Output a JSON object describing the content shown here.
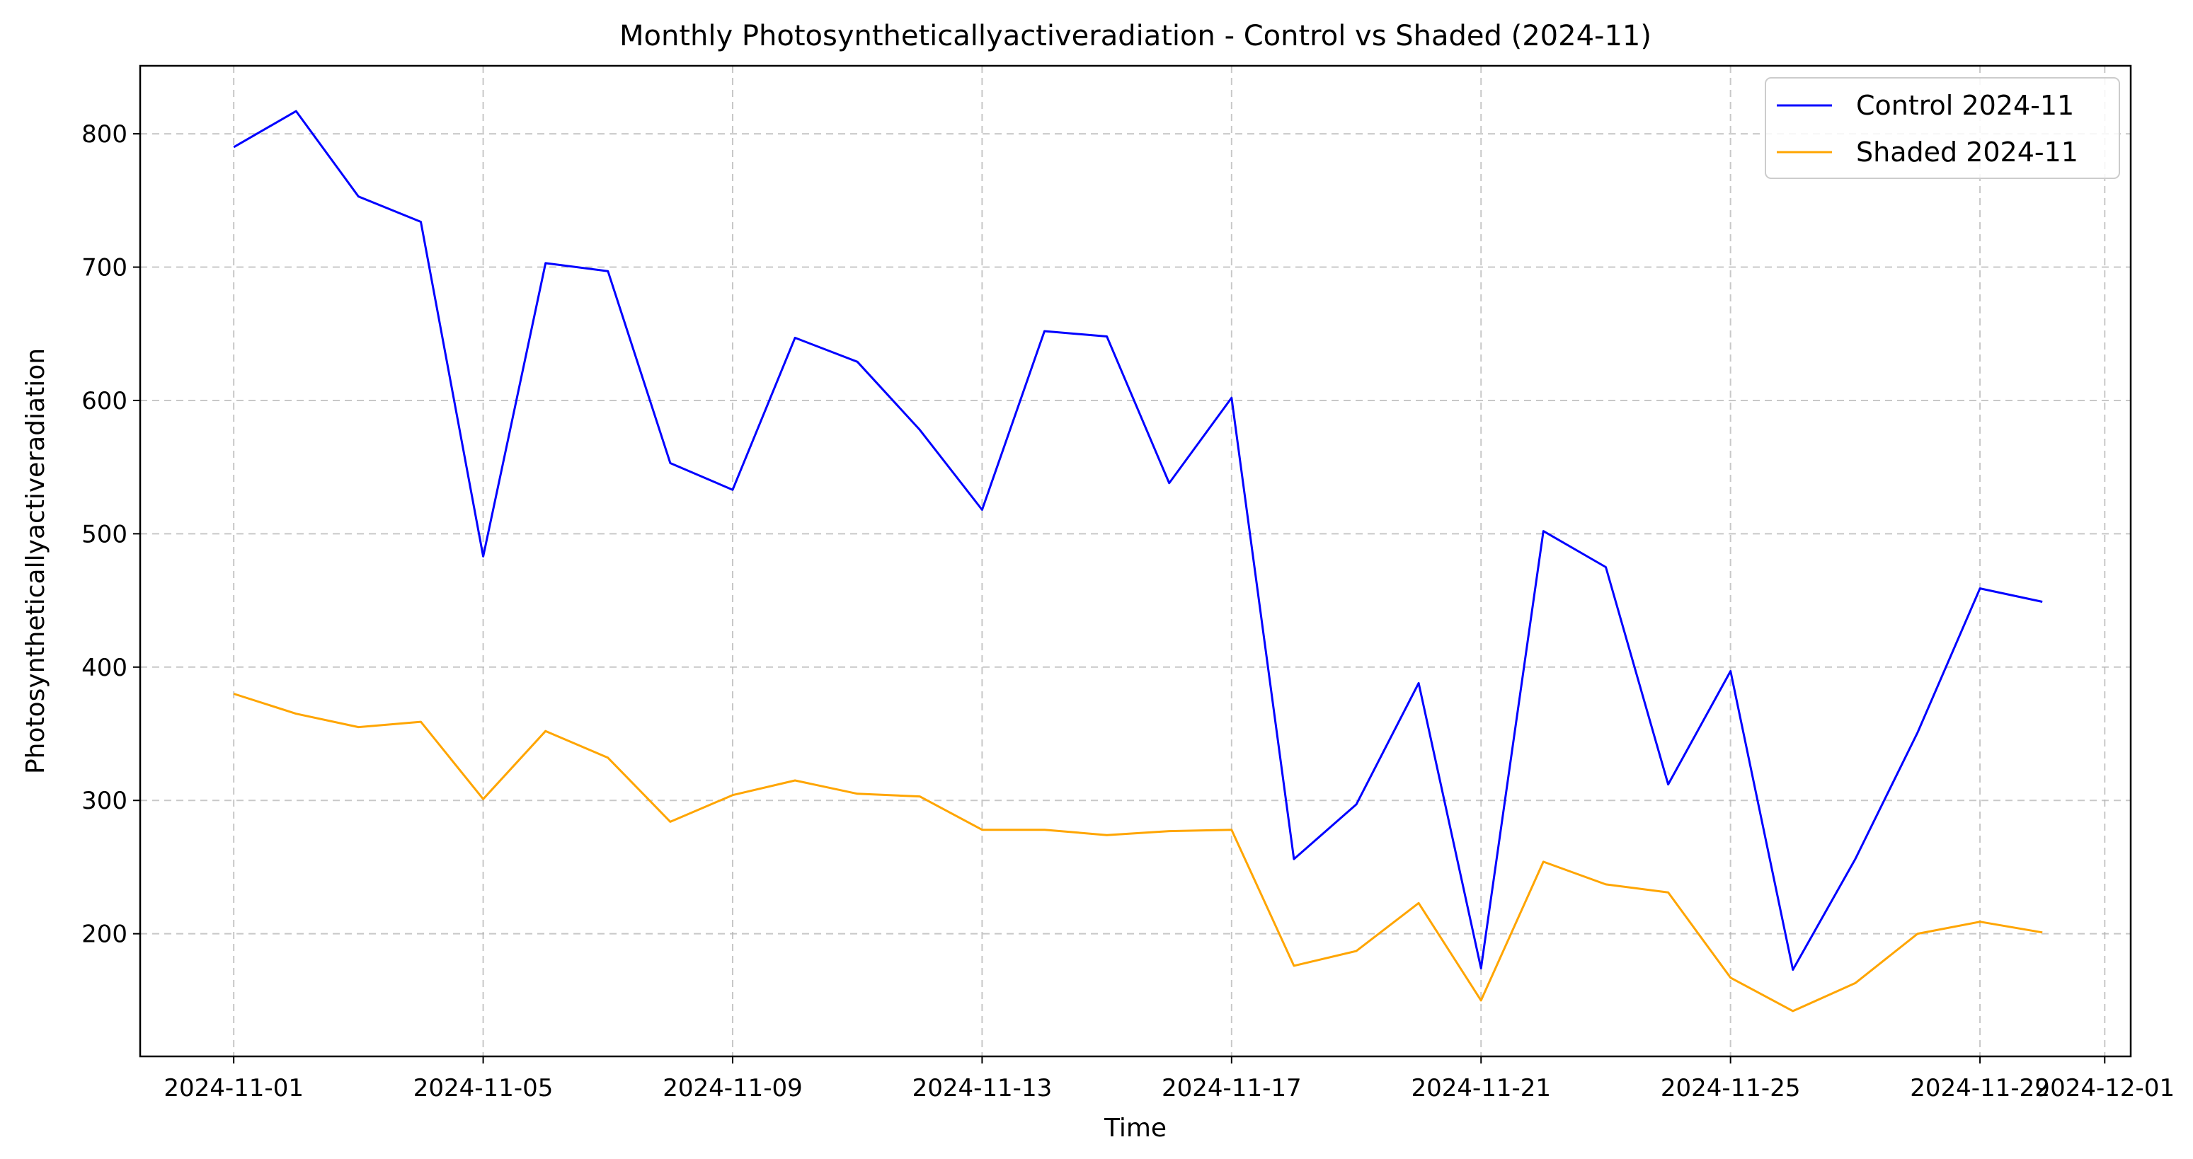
{
  "chart_data": {
    "type": "line",
    "title": "Monthly Photosyntheticallyactiveradiation - Control vs Shaded (2024-11)",
    "xlabel": "Time",
    "ylabel": "Photosyntheticallyactiveradiation",
    "x_dates": [
      "2024-11-01",
      "2024-11-02",
      "2024-11-03",
      "2024-11-04",
      "2024-11-05",
      "2024-11-06",
      "2024-11-07",
      "2024-11-08",
      "2024-11-09",
      "2024-11-10",
      "2024-11-11",
      "2024-11-12",
      "2024-11-13",
      "2024-11-14",
      "2024-11-15",
      "2024-11-16",
      "2024-11-17",
      "2024-11-18",
      "2024-11-19",
      "2024-11-20",
      "2024-11-21",
      "2024-11-22",
      "2024-11-23",
      "2024-11-24",
      "2024-11-25",
      "2024-11-26",
      "2024-11-27",
      "2024-11-28",
      "2024-11-29",
      "2024-11-30"
    ],
    "xlim": [
      "2024-10-30T12:00",
      "2024-12-01T10:00"
    ],
    "ylim": [
      108,
      851
    ],
    "x_ticks": [
      "2024-11-01",
      "2024-11-05",
      "2024-11-09",
      "2024-11-13",
      "2024-11-17",
      "2024-11-21",
      "2024-11-25",
      "2024-11-29",
      "2024-12-01"
    ],
    "y_ticks": [
      200,
      300,
      400,
      500,
      600,
      700,
      800
    ],
    "grid": true,
    "legend_position": "top-right",
    "series": [
      {
        "name": "Control 2024-11",
        "color": "#0000ff",
        "values": [
          790,
          817,
          753,
          734,
          483,
          703,
          697,
          553,
          533,
          647,
          629,
          578,
          518,
          652,
          648,
          538,
          602,
          256,
          297,
          388,
          174,
          502,
          475,
          312,
          397,
          173,
          256,
          351,
          459,
          449
        ]
      },
      {
        "name": "Shaded 2024-11",
        "color": "#ffa500",
        "values": [
          380,
          365,
          355,
          359,
          301,
          352,
          332,
          284,
          304,
          315,
          305,
          303,
          278,
          278,
          274,
          277,
          278,
          176,
          187,
          223,
          150,
          254,
          237,
          231,
          167,
          142,
          163,
          200,
          209,
          201
        ]
      }
    ]
  }
}
